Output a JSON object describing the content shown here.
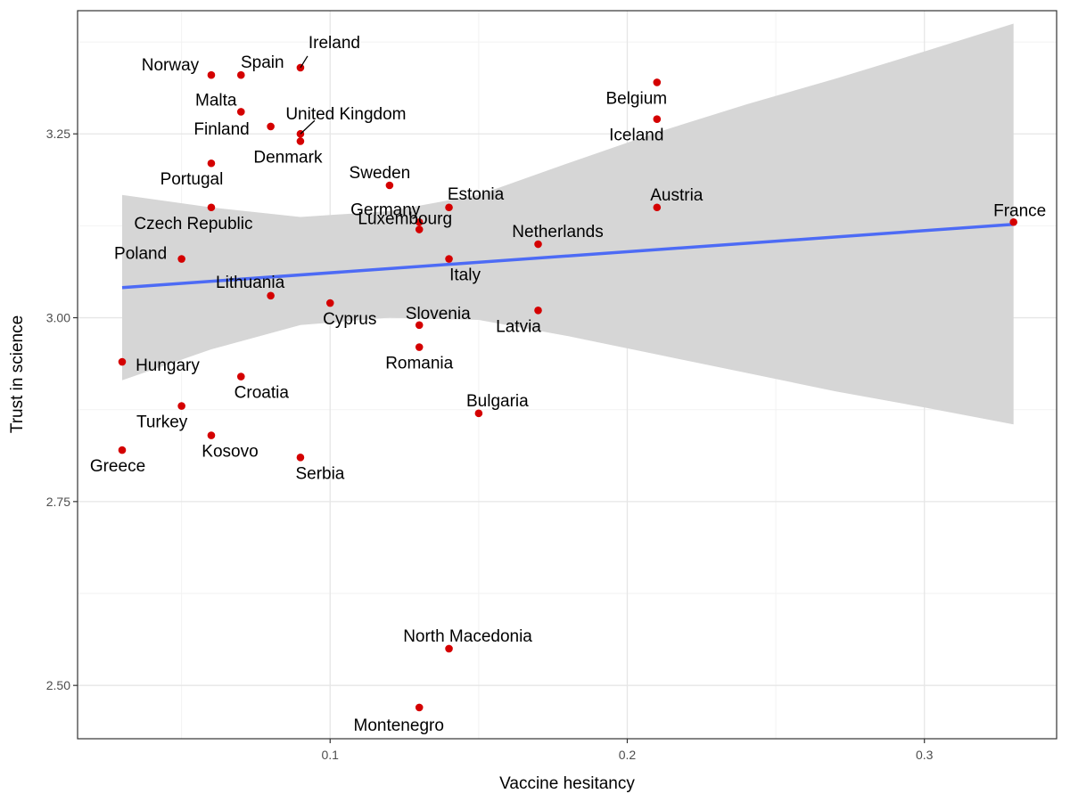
{
  "chart_data": {
    "type": "scatter",
    "title": "",
    "xlabel": "Vaccine hesitancy",
    "ylabel": "Trust in science",
    "xlim": [
      0.015,
      0.3445
    ],
    "ylim": [
      2.4275,
      3.4175
    ],
    "x_ticks": [
      {
        "value": 0.1,
        "label": "0.1"
      },
      {
        "value": 0.2,
        "label": "0.2"
      },
      {
        "value": 0.3,
        "label": "0.3"
      }
    ],
    "y_ticks": [
      {
        "value": 2.5,
        "label": "2.50"
      },
      {
        "value": 2.75,
        "label": "2.75"
      },
      {
        "value": 3.0,
        "label": "3.00"
      },
      {
        "value": 3.25,
        "label": "3.25"
      }
    ],
    "grid": true,
    "point_color": "#d40000",
    "line_color": "#4d6bf5",
    "band_color": "#d6d6d6",
    "panel_border_color": "#333333",
    "regression": {
      "x": [
        0.03,
        0.33
      ],
      "y": [
        3.041,
        3.127
      ],
      "band": [
        {
          "x": 0.03,
          "lo": 2.915,
          "hi": 3.167
        },
        {
          "x": 0.06,
          "lo": 2.957,
          "hi": 3.15
        },
        {
          "x": 0.09,
          "lo": 2.99,
          "hi": 3.137
        },
        {
          "x": 0.12,
          "lo": 3.0,
          "hi": 3.145
        },
        {
          "x": 0.15,
          "lo": 2.997,
          "hi": 3.167
        },
        {
          "x": 0.18,
          "lo": 2.975,
          "hi": 3.21
        },
        {
          "x": 0.21,
          "lo": 2.95,
          "hi": 3.252
        },
        {
          "x": 0.24,
          "lo": 2.925,
          "hi": 3.29
        },
        {
          "x": 0.27,
          "lo": 2.9,
          "hi": 3.325
        },
        {
          "x": 0.3,
          "lo": 2.878,
          "hi": 3.362
        },
        {
          "x": 0.33,
          "lo": 2.855,
          "hi": 3.4
        }
      ]
    },
    "points": [
      {
        "country": "Norway",
        "x": 0.06,
        "y": 3.33
      },
      {
        "country": "Spain",
        "x": 0.07,
        "y": 3.33
      },
      {
        "country": "Ireland",
        "x": 0.09,
        "y": 3.34
      },
      {
        "country": "Malta",
        "x": 0.07,
        "y": 3.28
      },
      {
        "country": "Finland",
        "x": 0.08,
        "y": 3.26
      },
      {
        "country": "United Kingdom",
        "x": 0.09,
        "y": 3.25
      },
      {
        "country": "Denmark",
        "x": 0.09,
        "y": 3.24
      },
      {
        "country": "Portugal",
        "x": 0.06,
        "y": 3.21
      },
      {
        "country": "Czech Republic",
        "x": 0.06,
        "y": 3.15
      },
      {
        "country": "Poland",
        "x": 0.05,
        "y": 3.08
      },
      {
        "country": "Lithuania",
        "x": 0.08,
        "y": 3.03
      },
      {
        "country": "Cyprus",
        "x": 0.1,
        "y": 3.02
      },
      {
        "country": "Sweden",
        "x": 0.12,
        "y": 3.18
      },
      {
        "country": "Estonia",
        "x": 0.14,
        "y": 3.15
      },
      {
        "country": "Germany",
        "x": 0.13,
        "y": 3.13
      },
      {
        "country": "Luxembourg",
        "x": 0.13,
        "y": 3.12
      },
      {
        "country": "Italy",
        "x": 0.14,
        "y": 3.08
      },
      {
        "country": "Slovenia",
        "x": 0.13,
        "y": 2.99
      },
      {
        "country": "Romania",
        "x": 0.13,
        "y": 2.96
      },
      {
        "country": "Netherlands",
        "x": 0.17,
        "y": 3.1
      },
      {
        "country": "Latvia",
        "x": 0.17,
        "y": 3.01
      },
      {
        "country": "Belgium",
        "x": 0.21,
        "y": 3.32
      },
      {
        "country": "Iceland",
        "x": 0.21,
        "y": 3.27
      },
      {
        "country": "Austria",
        "x": 0.21,
        "y": 3.15
      },
      {
        "country": "France",
        "x": 0.33,
        "y": 3.13
      },
      {
        "country": "Hungary",
        "x": 0.03,
        "y": 2.94
      },
      {
        "country": "Croatia",
        "x": 0.07,
        "y": 2.92
      },
      {
        "country": "Turkey",
        "x": 0.05,
        "y": 2.88
      },
      {
        "country": "Kosovo",
        "x": 0.06,
        "y": 2.84
      },
      {
        "country": "Greece",
        "x": 0.03,
        "y": 2.82
      },
      {
        "country": "Serbia",
        "x": 0.09,
        "y": 2.81
      },
      {
        "country": "Bulgaria",
        "x": 0.15,
        "y": 2.87
      },
      {
        "country": "North Macedonia",
        "x": 0.14,
        "y": 2.55
      },
      {
        "country": "Montenegro",
        "x": 0.13,
        "y": 2.47
      }
    ]
  }
}
